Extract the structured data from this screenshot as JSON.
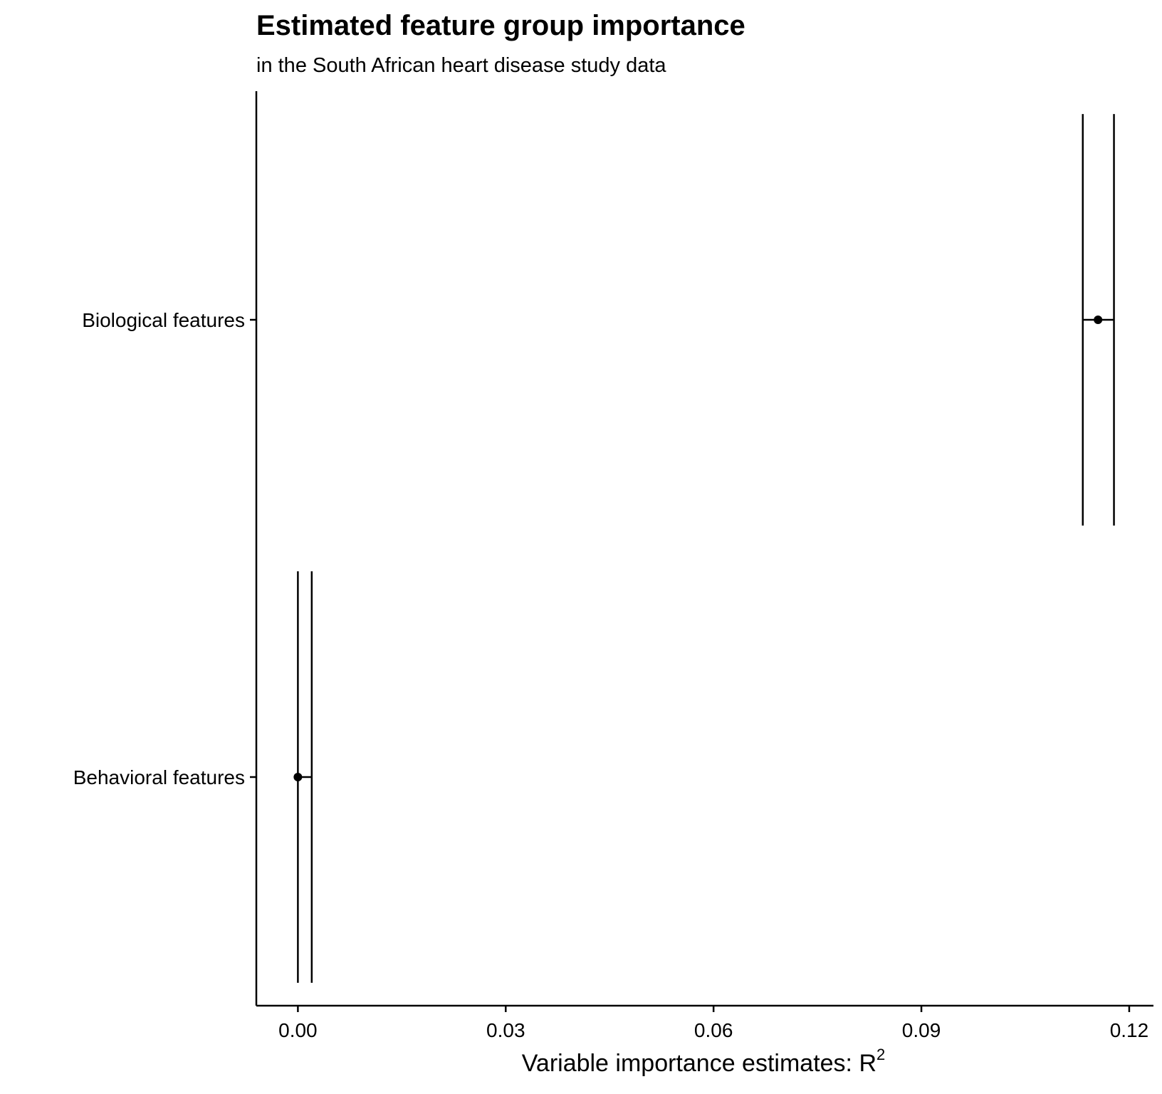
{
  "chart_data": {
    "type": "errorbar",
    "title": "Estimated feature group importance",
    "subtitle": "in the South African heart disease study data",
    "xlabel": "Variable importance estimates: R",
    "xlabel_superscript": "2",
    "ylabel": "",
    "xlim": [
      -0.006,
      0.1235
    ],
    "x_ticks": [
      0.0,
      0.03,
      0.06,
      0.09,
      0.12
    ],
    "x_tick_labels": [
      "0.00",
      "0.03",
      "0.06",
      "0.09",
      "0.12"
    ],
    "categories": [
      "Biological features",
      "Behavioral features"
    ],
    "points": [
      {
        "label": "Biological features",
        "estimate": 0.1155,
        "lower": 0.1133,
        "upper": 0.1178
      },
      {
        "label": "Behavioral features",
        "estimate": 0.0,
        "lower": 0.0,
        "upper": 0.002
      }
    ],
    "grid": false,
    "legend": "none",
    "colors": {
      "marks": "#000000",
      "background": "#ffffff"
    }
  }
}
